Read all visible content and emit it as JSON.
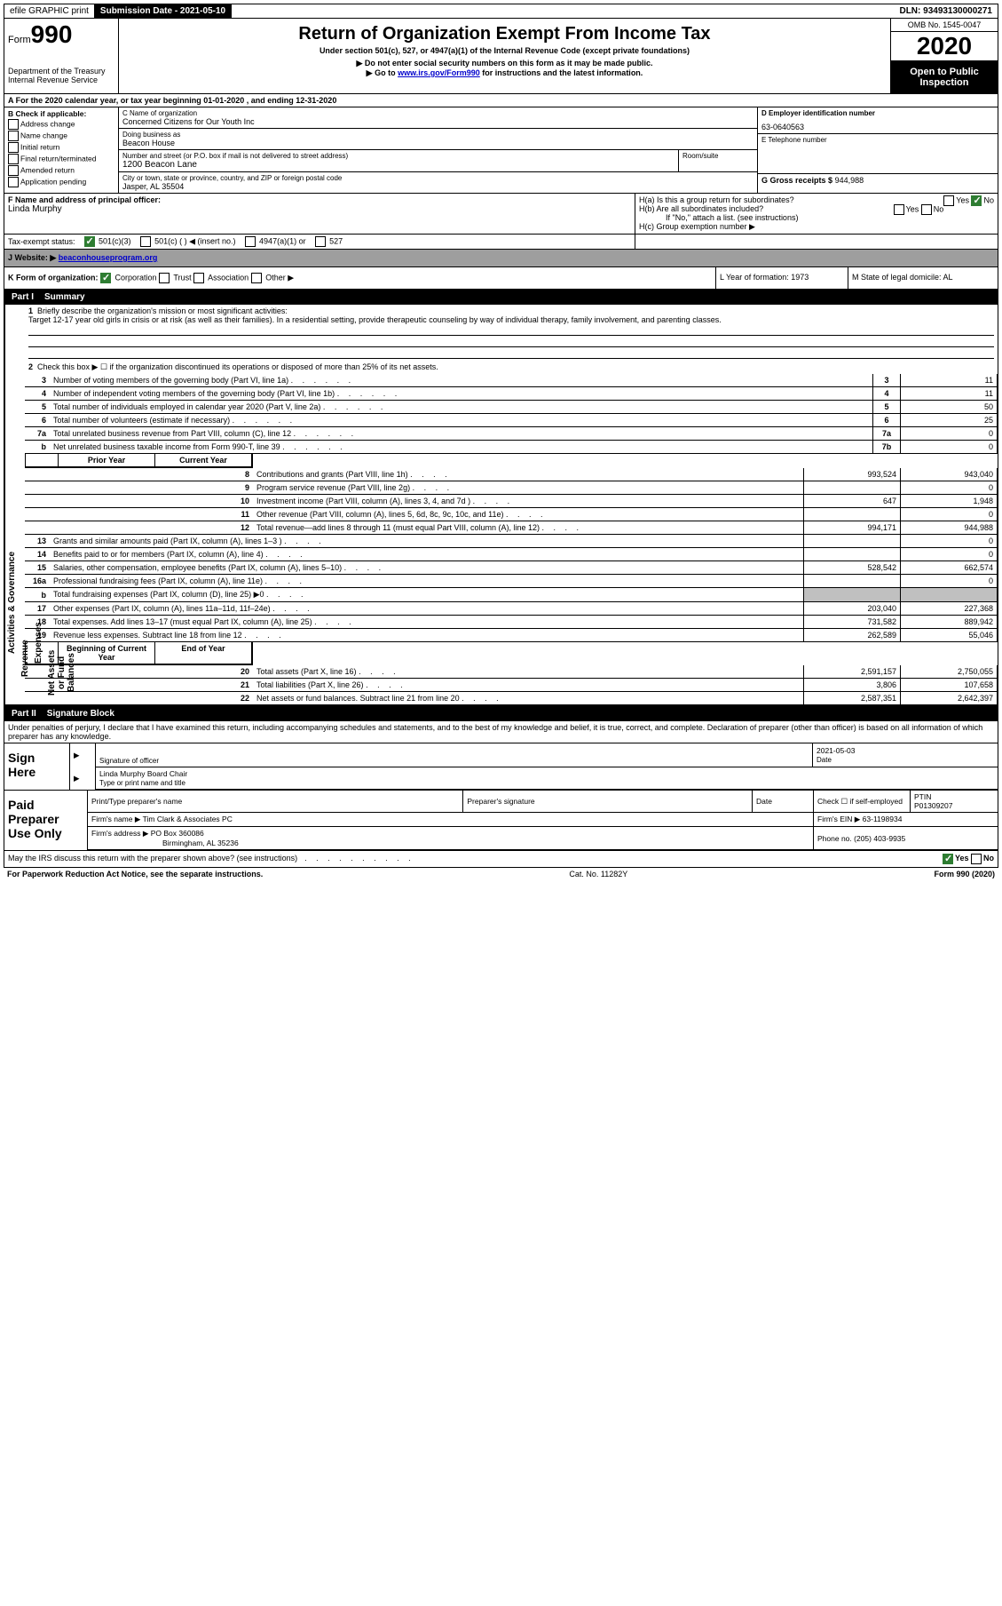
{
  "topbar": {
    "efile": "efile GRAPHIC print",
    "submission_label": "Submission Date - 2021-05-10",
    "dln": "DLN: 93493130000271"
  },
  "header": {
    "form_prefix": "Form",
    "form_number": "990",
    "dept": "Department of the Treasury",
    "irs": "Internal Revenue Service",
    "title": "Return of Organization Exempt From Income Tax",
    "subtitle": "Under section 501(c), 527, or 4947(a)(1) of the Internal Revenue Code (except private foundations)",
    "note1": "▶ Do not enter social security numbers on this form as it may be made public.",
    "note2_pre": "▶ Go to ",
    "note2_link": "www.irs.gov/Form990",
    "note2_post": " for instructions and the latest information.",
    "omb": "OMB No. 1545-0047",
    "year": "2020",
    "open": "Open to Public Inspection"
  },
  "section_a": "A For the 2020 calendar year, or tax year beginning 01-01-2020    , and ending 12-31-2020",
  "col_b": {
    "label": "B Check if applicable:",
    "opts": [
      "Address change",
      "Name change",
      "Initial return",
      "Final return/terminated",
      "Amended return",
      "Application pending"
    ]
  },
  "col_c": {
    "name_label": "C Name of organization",
    "name": "Concerned Citizens for Our Youth Inc",
    "dba_label": "Doing business as",
    "dba": "Beacon House",
    "street_label": "Number and street (or P.O. box if mail is not delivered to street address)",
    "room_label": "Room/suite",
    "street": "1200 Beacon Lane",
    "city_label": "City or town, state or province, country, and ZIP or foreign postal code",
    "city": "Jasper, AL  35504"
  },
  "col_d": {
    "ein_label": "D Employer identification number",
    "ein": "63-0640563",
    "phone_label": "E Telephone number",
    "gross_label": "G Gross receipts $",
    "gross": "944,988"
  },
  "row_f": {
    "label": "F  Name and address of principal officer:",
    "name": "Linda Murphy"
  },
  "row_h": {
    "ha": "H(a)  Is this a group return for subordinates?",
    "hb": "H(b)  Are all subordinates included?",
    "hb_note": "If \"No,\" attach a list. (see instructions)",
    "hc": "H(c)  Group exemption number ▶"
  },
  "tax_exempt": {
    "label": "Tax-exempt status:",
    "opt1": "501(c)(3)",
    "opt2": "501(c) (   ) ◀ (insert no.)",
    "opt3": "4947(a)(1) or",
    "opt4": "527"
  },
  "website": {
    "label": "J   Website: ▶",
    "url": "beaconhouseprogram.org"
  },
  "row_k": {
    "k": "K Form of organization:",
    "corp": "Corporation",
    "trust": "Trust",
    "assoc": "Association",
    "other": "Other ▶",
    "l": "L Year of formation: 1973",
    "m": "M State of legal domicile: AL"
  },
  "part1": {
    "header_num": "Part I",
    "header_title": "Summary",
    "line1_label": "Briefly describe the organization's mission or most significant activities:",
    "line1_text": "Target 12-17 year old girls in crisis or at risk (as well as their families). In a residential setting, provide therapeutic counseling by way of individual therapy, family involvement, and parenting classes.",
    "line2": "Check this box ▶ ☐  if the organization discontinued its operations or disposed of more than 25% of its net assets.",
    "rows": [
      {
        "n": "3",
        "d": "Number of voting members of the governing body (Part VI, line 1a)",
        "b": "3",
        "v": "11"
      },
      {
        "n": "4",
        "d": "Number of independent voting members of the governing body (Part VI, line 1b)",
        "b": "4",
        "v": "11"
      },
      {
        "n": "5",
        "d": "Total number of individuals employed in calendar year 2020 (Part V, line 2a)",
        "b": "5",
        "v": "50"
      },
      {
        "n": "6",
        "d": "Total number of volunteers (estimate if necessary)",
        "b": "6",
        "v": "25"
      },
      {
        "n": "7a",
        "d": "Total unrelated business revenue from Part VIII, column (C), line 12",
        "b": "7a",
        "v": "0"
      },
      {
        "n": "b",
        "d": "Net unrelated business taxable income from Form 990-T, line 39",
        "b": "7b",
        "v": "0"
      }
    ],
    "header_prior": "Prior Year",
    "header_current": "Current Year",
    "revenue": [
      {
        "n": "8",
        "d": "Contributions and grants (Part VIII, line 1h)",
        "p": "993,524",
        "c": "943,040"
      },
      {
        "n": "9",
        "d": "Program service revenue (Part VIII, line 2g)",
        "p": "",
        "c": "0"
      },
      {
        "n": "10",
        "d": "Investment income (Part VIII, column (A), lines 3, 4, and 7d )",
        "p": "647",
        "c": "1,948"
      },
      {
        "n": "11",
        "d": "Other revenue (Part VIII, column (A), lines 5, 6d, 8c, 9c, 10c, and 11e)",
        "p": "",
        "c": "0"
      },
      {
        "n": "12",
        "d": "Total revenue—add lines 8 through 11 (must equal Part VIII, column (A), line 12)",
        "p": "994,171",
        "c": "944,988"
      }
    ],
    "expenses": [
      {
        "n": "13",
        "d": "Grants and similar amounts paid (Part IX, column (A), lines 1–3 )",
        "p": "",
        "c": "0"
      },
      {
        "n": "14",
        "d": "Benefits paid to or for members (Part IX, column (A), line 4)",
        "p": "",
        "c": "0"
      },
      {
        "n": "15",
        "d": "Salaries, other compensation, employee benefits (Part IX, column (A), lines 5–10)",
        "p": "528,542",
        "c": "662,574"
      },
      {
        "n": "16a",
        "d": "Professional fundraising fees (Part IX, column (A), line 11e)",
        "p": "",
        "c": "0"
      },
      {
        "n": "b",
        "d": "Total fundraising expenses (Part IX, column (D), line 25) ▶0",
        "p": "shaded",
        "c": "shaded"
      },
      {
        "n": "17",
        "d": "Other expenses (Part IX, column (A), lines 11a–11d, 11f–24e)",
        "p": "203,040",
        "c": "227,368"
      },
      {
        "n": "18",
        "d": "Total expenses. Add lines 13–17 (must equal Part IX, column (A), line 25)",
        "p": "731,582",
        "c": "889,942"
      },
      {
        "n": "19",
        "d": "Revenue less expenses. Subtract line 18 from line 12",
        "p": "262,589",
        "c": "55,046"
      }
    ],
    "header_begin": "Beginning of Current Year",
    "header_end": "End of Year",
    "netassets": [
      {
        "n": "20",
        "d": "Total assets (Part X, line 16)",
        "p": "2,591,157",
        "c": "2,750,055"
      },
      {
        "n": "21",
        "d": "Total liabilities (Part X, line 26)",
        "p": "3,806",
        "c": "107,658"
      },
      {
        "n": "22",
        "d": "Net assets or fund balances. Subtract line 21 from line 20",
        "p": "2,587,351",
        "c": "2,642,397"
      }
    ]
  },
  "vtabs": {
    "gov": "Activities & Governance",
    "rev": "Revenue",
    "exp": "Expenses",
    "net": "Net Assets or Fund Balances"
  },
  "part2": {
    "header_num": "Part II",
    "header_title": "Signature Block",
    "perjury": "Under penalties of perjury, I declare that I have examined this return, including accompanying schedules and statements, and to the best of my knowledge and belief, it is true, correct, and complete. Declaration of preparer (other than officer) is based on all information of which preparer has any knowledge.",
    "sign_here": "Sign Here",
    "sig_officer": "Signature of officer",
    "date_label": "Date",
    "date_val": "2021-05-03",
    "name_title": "Linda Murphy  Board Chair",
    "type_label": "Type or print name and title",
    "paid": "Paid Preparer Use Only",
    "print_name": "Print/Type preparer's name",
    "prep_sig": "Preparer's signature",
    "check_self": "Check ☐ if self-employed",
    "ptin_label": "PTIN",
    "ptin": "P01309207",
    "firm_name_label": "Firm's name    ▶",
    "firm_name": "Tim Clark & Associates PC",
    "firm_ein_label": "Firm's EIN ▶",
    "firm_ein": "63-1198934",
    "firm_addr_label": "Firm's address ▶",
    "firm_addr1": "PO Box 360086",
    "firm_addr2": "Birmingham, AL  35236",
    "phone_label": "Phone no.",
    "phone": "(205) 403-9935",
    "discuss": "May the IRS discuss this return with the preparer shown above? (see instructions)",
    "yes": "Yes",
    "no": "No"
  },
  "footer": {
    "left": "For Paperwork Reduction Act Notice, see the separate instructions.",
    "mid": "Cat. No. 11282Y",
    "right": "Form 990 (2020)"
  }
}
